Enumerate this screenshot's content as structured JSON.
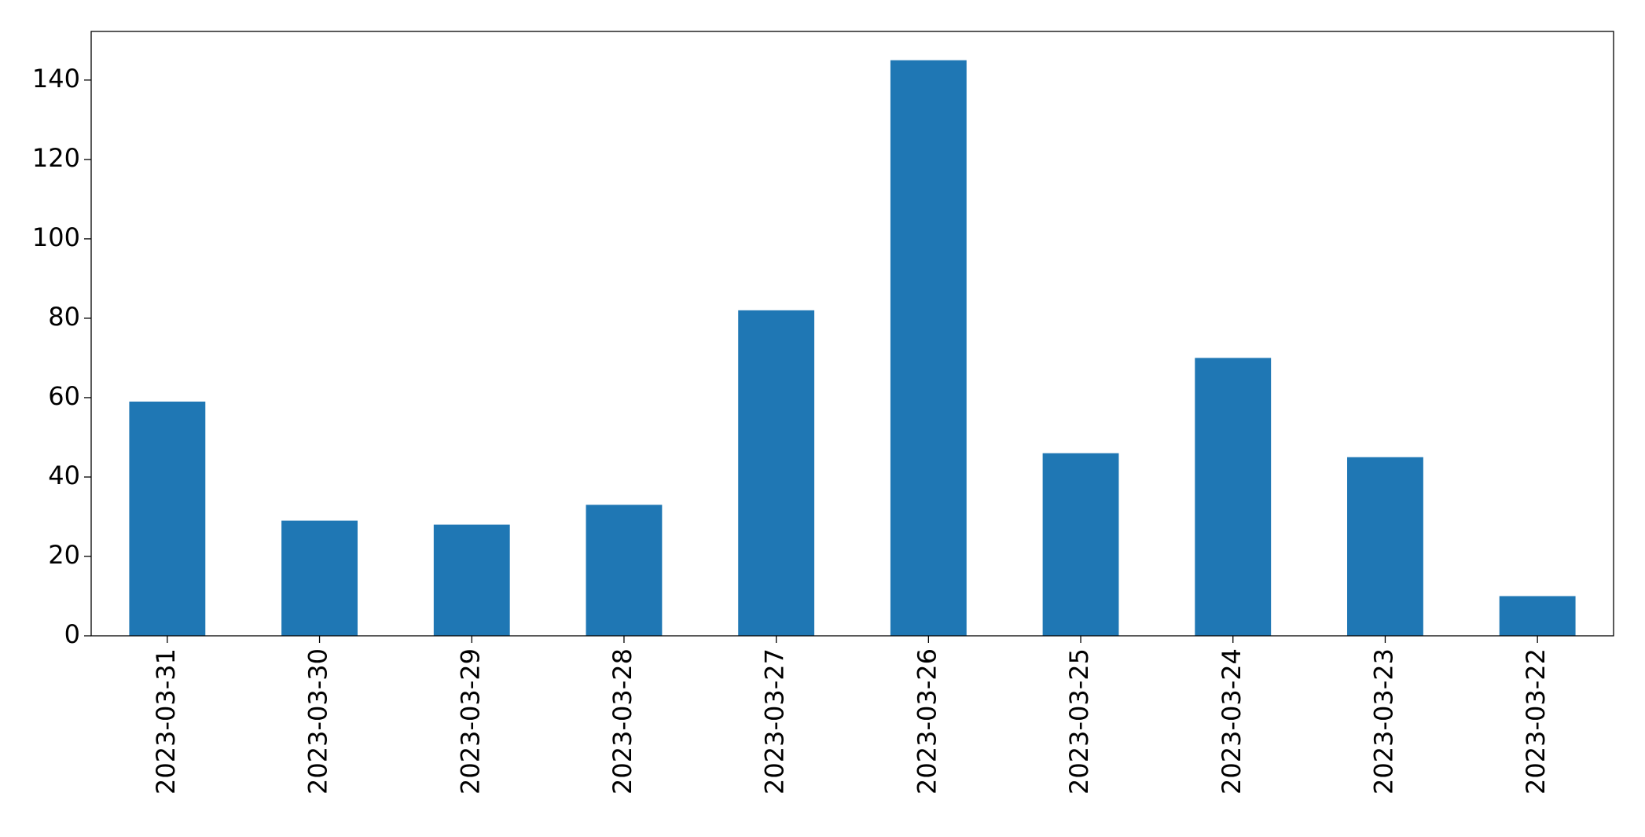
{
  "chart_data": {
    "type": "bar",
    "categories": [
      "2023-03-31",
      "2023-03-30",
      "2023-03-29",
      "2023-03-28",
      "2023-03-27",
      "2023-03-26",
      "2023-03-25",
      "2023-03-24",
      "2023-03-23",
      "2023-03-22"
    ],
    "values": [
      59,
      29,
      28,
      33,
      82,
      145,
      46,
      70,
      45,
      10
    ],
    "color": "#1f77b4",
    "ylim": [
      0,
      152.25
    ],
    "yticks": [
      0,
      20,
      40,
      60,
      80,
      100,
      120,
      140
    ],
    "grid": false
  }
}
